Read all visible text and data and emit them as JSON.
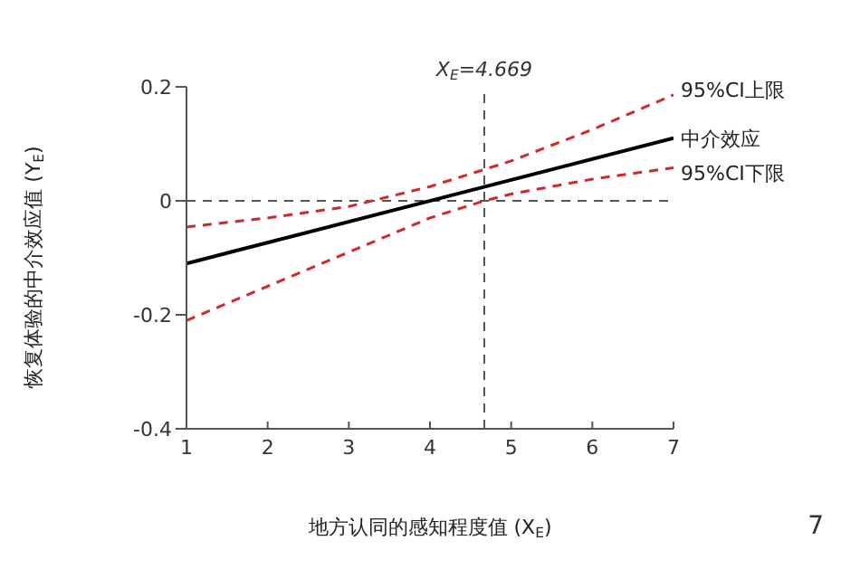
{
  "chart_data": {
    "type": "line",
    "xlabel": "地方认同的感知程度值 (X$_{E}$)",
    "ylabel": "恢复体验的中介效应值 (Y$_{E}$)",
    "xlim": [
      1,
      7
    ],
    "xticks": [
      1,
      2,
      3,
      4,
      5,
      6,
      7
    ],
    "ylim": [
      -0.4,
      0.2
    ],
    "yticks": [
      -0.4,
      -0.2,
      0,
      0.2
    ],
    "marker": "none",
    "series": [
      {
        "name": "95%CI上限",
        "color": "#d62728",
        "line_style": "dashed",
        "x": [
          1,
          2,
          3,
          4,
          4.669,
          5,
          6,
          7
        ],
        "values": [
          -0.046,
          -0.03,
          -0.01,
          0.025,
          0.055,
          0.07,
          0.125,
          0.186
        ]
      },
      {
        "name": "中介效应",
        "color": "#000000",
        "line_style": "solid",
        "x": [
          1,
          7
        ],
        "values": [
          -0.11,
          0.11
        ]
      },
      {
        "name": "95%CI下限",
        "color": "#d62728",
        "line_style": "dashed",
        "x": [
          1,
          2,
          3,
          4,
          4.669,
          5,
          6,
          7
        ],
        "values": [
          -0.21,
          -0.15,
          -0.09,
          -0.03,
          0,
          0.012,
          0.038,
          0.058
        ]
      }
    ],
    "ref_lines": [
      {
        "axis": "y",
        "value": 0,
        "label": null,
        "line_style": "dashed",
        "color": "#555555"
      },
      {
        "axis": "x",
        "value": 4.669,
        "label": "X$_{E}$=4.669",
        "line_style": "dashed",
        "color": "#555555"
      }
    ],
    "annotations": [
      "7"
    ]
  }
}
